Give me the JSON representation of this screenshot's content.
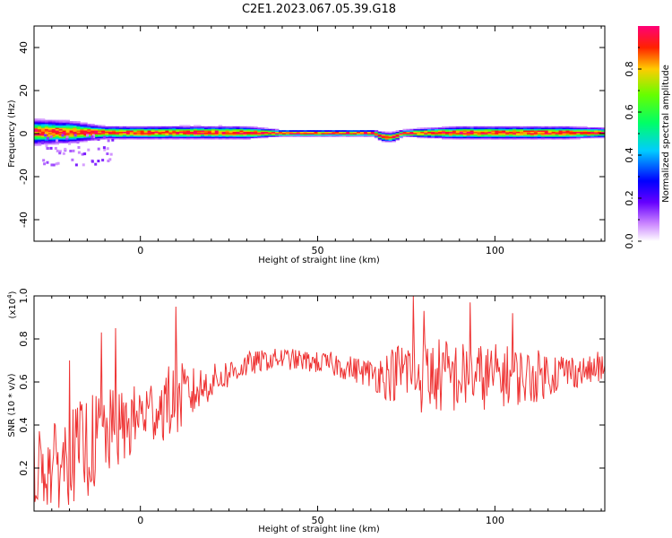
{
  "title": "C2E1.2023.067.05.39.G18",
  "colors": {
    "snr_line": "#ee3333",
    "axes": "#000000",
    "colormap": [
      "#ffffff",
      "#8800ff",
      "#2200ff",
      "#00ffff",
      "#00ff00",
      "#ffff00",
      "#ff0000",
      "#ff0077"
    ]
  },
  "chart_data": [
    {
      "type": "heatmap",
      "xlabel": "Height of straight line (km)",
      "ylabel": "Frequency (Hz)",
      "xlim": [
        -30,
        131
      ],
      "ylim": [
        -50,
        50
      ],
      "xticks": [
        0,
        50,
        100
      ],
      "xtick_labels": [
        "0",
        "50",
        "100"
      ],
      "yticks": [
        40,
        20,
        0,
        -20,
        -40
      ],
      "ytick_labels": [
        "40",
        "20",
        "0",
        "-20",
        "-40"
      ],
      "grid": false,
      "colorbar": {
        "label": "Normalized spectral amplitude",
        "range": [
          0,
          1
        ],
        "ticks": [
          0.0,
          0.2,
          0.4,
          0.6,
          0.8
        ],
        "tick_labels": [
          "0.0",
          "0.2",
          "0.4",
          "0.6",
          "0.8"
        ]
      },
      "ridge": {
        "description_key": "dominant frequency track near 0 Hz",
        "x": [
          -30,
          -20,
          -10,
          0,
          10,
          20,
          30,
          40,
          50,
          60,
          66,
          68,
          70,
          72,
          74,
          80,
          90,
          100,
          110,
          120,
          131
        ],
        "freq": [
          0.5,
          0.5,
          0.3,
          0.2,
          0.3,
          0.3,
          0.2,
          0.0,
          0.0,
          0.0,
          0.0,
          -1.5,
          -2.0,
          -1.5,
          0.0,
          0.1,
          0.2,
          0.2,
          0.2,
          0.2,
          0.2
        ],
        "width": [
          4,
          3.5,
          2,
          2,
          2,
          2,
          2,
          1,
          1,
          1,
          1,
          1.5,
          1.5,
          1.5,
          1,
          1.5,
          2,
          2,
          2,
          2,
          1.5
        ]
      }
    },
    {
      "type": "line",
      "xlabel": "Height of straight line (km)",
      "ylabel": "SNR (10 * v/v)",
      "y_multiplier_label": "(x10",
      "y_multiplier_exp": "4",
      "y_multiplier_close": ")",
      "xlim": [
        -30,
        131
      ],
      "ylim": [
        0,
        1.0
      ],
      "xticks": [
        0,
        50,
        100
      ],
      "xtick_labels": [
        "0",
        "50",
        "100"
      ],
      "yticks": [
        0.2,
        0.4,
        0.6,
        0.8,
        1.0
      ],
      "ytick_labels": [
        "0.2",
        "0.4",
        "0.6",
        "0.8",
        "1.0"
      ],
      "grid": false,
      "series": [
        {
          "envelope_x": [
            -30,
            -25,
            -20,
            -15,
            -10,
            -5,
            0,
            5,
            10,
            15,
            20,
            25,
            30,
            35,
            40,
            45,
            50,
            55,
            60,
            65,
            70,
            75,
            80,
            85,
            90,
            95,
            100,
            105,
            110,
            115,
            120,
            125,
            131
          ],
          "envelope_mean": [
            0.22,
            0.2,
            0.25,
            0.3,
            0.35,
            0.38,
            0.45,
            0.48,
            0.52,
            0.55,
            0.6,
            0.64,
            0.68,
            0.7,
            0.71,
            0.7,
            0.69,
            0.68,
            0.66,
            0.64,
            0.63,
            0.66,
            0.62,
            0.63,
            0.62,
            0.62,
            0.63,
            0.63,
            0.62,
            0.64,
            0.65,
            0.65,
            0.66
          ],
          "envelope_amp": [
            0.18,
            0.2,
            0.22,
            0.24,
            0.22,
            0.18,
            0.15,
            0.16,
            0.18,
            0.12,
            0.08,
            0.07,
            0.06,
            0.05,
            0.05,
            0.05,
            0.05,
            0.06,
            0.06,
            0.07,
            0.12,
            0.16,
            0.18,
            0.18,
            0.17,
            0.16,
            0.15,
            0.14,
            0.13,
            0.11,
            0.09,
            0.07,
            0.06
          ],
          "peaks_x": [
            -20,
            -11,
            -7,
            10,
            77,
            80,
            93,
            105,
            129
          ],
          "peaks_y": [
            0.7,
            0.83,
            0.85,
            0.95,
            1.0,
            0.93,
            0.97,
            0.92,
            0.74
          ]
        }
      ]
    }
  ]
}
